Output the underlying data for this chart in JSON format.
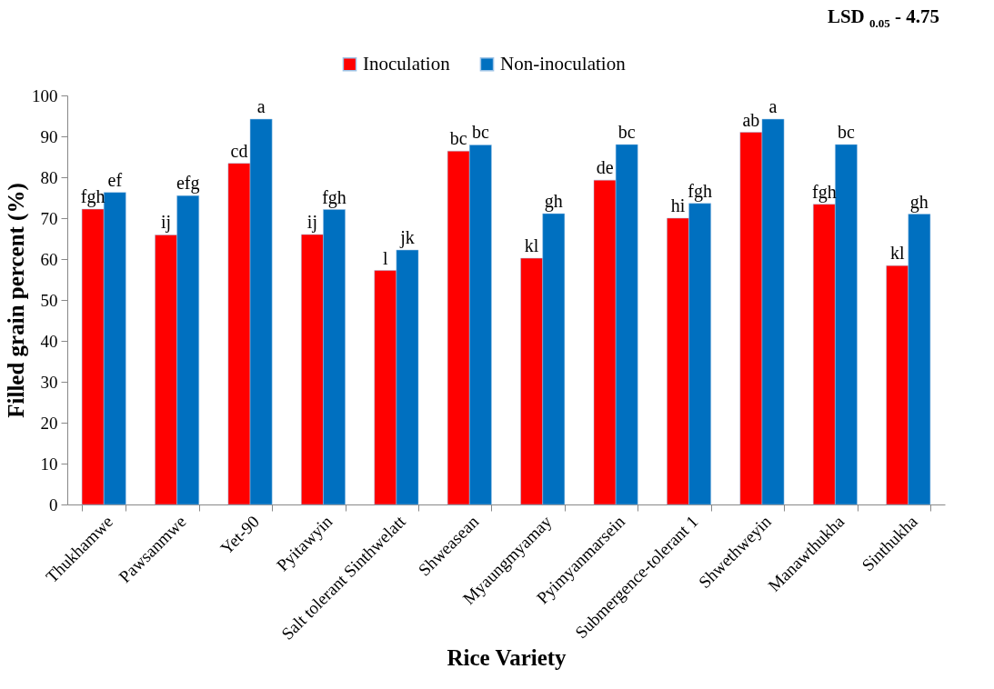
{
  "chart_data": {
    "type": "bar",
    "xlabel": "Rice Variety",
    "ylabel": "Filled grain percent  (%)",
    "categories": [
      "Thukhamwe",
      "Pawsanmwe",
      "Yet-90",
      "Pyitawyin",
      "Salt tolerant Sinthwelatt",
      "Shweasean",
      "Myaungmyamay",
      "Pyimyanmarsein",
      "Submergence-tolerant 1",
      "Shwethweyin",
      "Manawthukha",
      "Sinthukha"
    ],
    "series": [
      {
        "name": "Inoculation",
        "color": "#ff0000",
        "values": [
          72.2,
          65.9,
          83.4,
          66.0,
          57.2,
          86.4,
          60.2,
          79.3,
          70.0,
          91.0,
          73.4,
          58.4
        ],
        "value_labels": [
          "fgh",
          "ij",
          "cd",
          "ij",
          "l",
          "bc",
          "kl",
          "de",
          "hi",
          "ab",
          "fgh",
          "kl"
        ]
      },
      {
        "name": "Non-inoculation",
        "color": "#0070c0",
        "values": [
          76.3,
          75.5,
          94.2,
          72.1,
          62.2,
          87.9,
          71.1,
          88.0,
          73.6,
          94.2,
          88.0,
          71.0
        ],
        "value_labels": [
          "ef",
          "efg",
          "a",
          "fgh",
          "jk",
          "bc",
          "gh",
          "bc",
          "fgh",
          "a",
          "bc",
          "gh"
        ]
      }
    ],
    "ylim": [
      0,
      100
    ],
    "yticks": [
      0,
      10,
      20,
      30,
      40,
      50,
      60,
      70,
      80,
      90,
      100
    ],
    "grid": false,
    "legend": "top",
    "annotations": [
      "LSD $_{0.05}$ - 4.75"
    ]
  }
}
